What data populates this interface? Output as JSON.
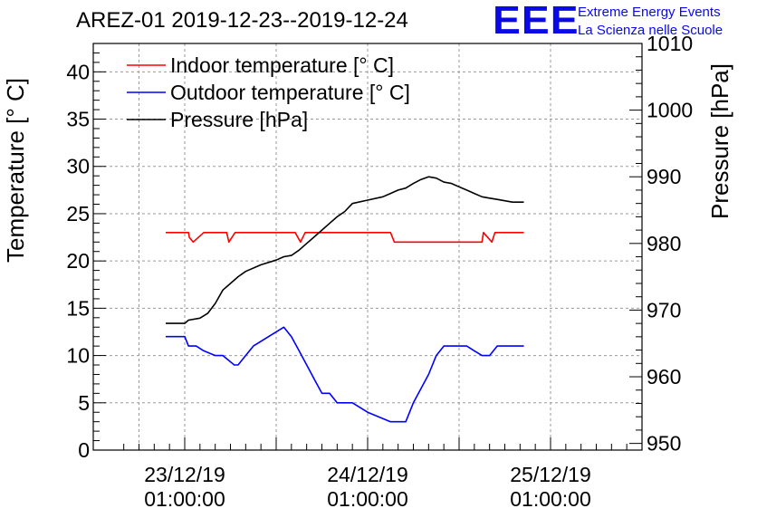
{
  "title": "AREZ-01 2019-12-23--2019-12-24",
  "logo": {
    "mark": "EEE",
    "line1": "Extreme Energy Events",
    "line2": "La Scienza nelle Scuole",
    "color": "#0a0ae6"
  },
  "chart_data": {
    "type": "line",
    "xlabel": "",
    "ylabel_left": "Temperature [° C]",
    "ylabel_right": "Pressure [hPa]",
    "xlim": [
      -12,
      60
    ],
    "ylim_left": [
      0,
      43
    ],
    "ylim_right": [
      949,
      1010
    ],
    "yticks_left": [
      0,
      5,
      10,
      15,
      20,
      25,
      30,
      35,
      40
    ],
    "yticks_right": [
      950,
      960,
      970,
      980,
      990,
      1000,
      1010
    ],
    "xticks": [
      {
        "x": 0,
        "line1": "23/12/19",
        "line2": "01:00:00"
      },
      {
        "x": 24,
        "line1": "24/12/19",
        "line2": "01:00:00"
      },
      {
        "x": 48,
        "line1": "25/12/19",
        "line2": "01:00:00"
      }
    ],
    "grid": true,
    "legend_position": "top-left",
    "series": [
      {
        "name": "Indoor temperature [° C]",
        "axis": "left",
        "color": "#ff0000",
        "x": [
          -2.5,
          0.5,
          0.6,
          1.1,
          2.5,
          5.5,
          5.8,
          6.6,
          14.5,
          15.2,
          15.8,
          27.0,
          27.5,
          39.0,
          39.2,
          40.3,
          40.7,
          44.5
        ],
        "y": [
          23,
          23,
          22.5,
          22,
          23,
          23,
          22,
          23,
          23,
          22,
          23,
          23,
          22,
          22,
          23,
          22,
          23,
          23
        ]
      },
      {
        "name": "Outdoor temperature [° C]",
        "axis": "left",
        "color": "#0000ff",
        "x": [
          -2.5,
          0,
          0.5,
          1.5,
          2.5,
          4,
          5,
          6.5,
          7,
          8,
          9,
          13,
          14,
          15,
          16,
          17,
          18,
          19,
          20,
          22,
          24,
          27,
          29,
          30,
          31,
          32,
          33,
          34,
          35,
          36,
          37,
          38,
          39,
          40,
          41,
          42,
          43,
          44.5
        ],
        "y": [
          12,
          12,
          11,
          11,
          10.5,
          10,
          10,
          9,
          9,
          10,
          11,
          13,
          12,
          10.5,
          9,
          7.5,
          6,
          6,
          5,
          5,
          4,
          3,
          3,
          5,
          6.5,
          8,
          10,
          11,
          11,
          11,
          11,
          10.5,
          10,
          10,
          11,
          11,
          11,
          11
        ]
      },
      {
        "name": "Pressure [hPa]",
        "axis": "right",
        "color": "#000000",
        "x": [
          -2.5,
          0,
          0.5,
          2,
          3,
          4,
          5,
          6,
          7,
          8,
          10,
          12,
          13,
          14,
          15,
          16,
          17,
          18,
          19,
          20,
          21,
          22,
          24,
          26,
          27,
          28,
          29,
          30,
          31,
          32,
          33,
          34,
          35,
          36,
          37,
          38,
          39,
          40,
          41,
          42,
          43,
          44.5
        ],
        "y": [
          968,
          968,
          968.5,
          968.8,
          969.5,
          971,
          973,
          974,
          975,
          975.8,
          976.8,
          977.5,
          978,
          978.2,
          979,
          980,
          981,
          982,
          983,
          984,
          984.8,
          986,
          986.5,
          987,
          987.5,
          988,
          988.3,
          989,
          989.6,
          990,
          989.8,
          989.2,
          989,
          988.5,
          988,
          987.5,
          987,
          986.8,
          986.6,
          986.4,
          986.2,
          986.2
        ]
      }
    ]
  }
}
